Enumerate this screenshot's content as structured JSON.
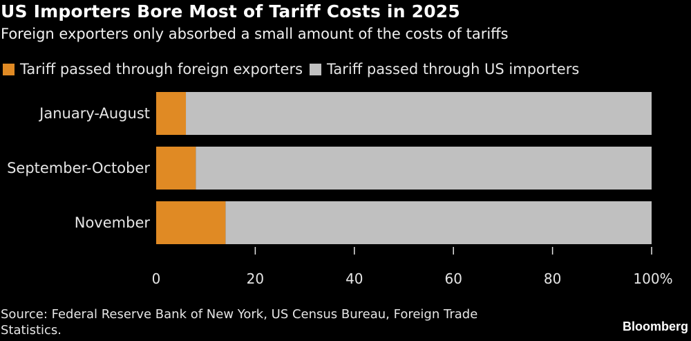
{
  "chart_data": {
    "type": "bar",
    "orientation": "horizontal",
    "stacked": true,
    "title": "US Importers Bore Most of Tariff Costs in 2025",
    "subtitle": "Foreign exporters only absorbed a small amount of the costs of tariffs",
    "categories": [
      "January-August",
      "September-October",
      "November"
    ],
    "series": [
      {
        "name": "Tariff passed through foreign exporters",
        "color": "#e08a24",
        "values": [
          6,
          8,
          14
        ]
      },
      {
        "name": "Tariff passed through US importers",
        "color": "#c0c0c0",
        "values": [
          94,
          92,
          86
        ]
      }
    ],
    "xlabel": "",
    "ylabel": "",
    "xlim": [
      0,
      100
    ],
    "x_ticks": [
      0,
      20,
      40,
      60,
      80,
      100
    ],
    "x_tick_labels": [
      "0",
      "20",
      "40",
      "60",
      "80",
      "100%"
    ],
    "grid": false,
    "legend_position": "top-left",
    "source": "Source: Federal Reserve Bank of New York, US Census Bureau, Foreign Trade Statistics.",
    "brand": "Bloomberg"
  }
}
